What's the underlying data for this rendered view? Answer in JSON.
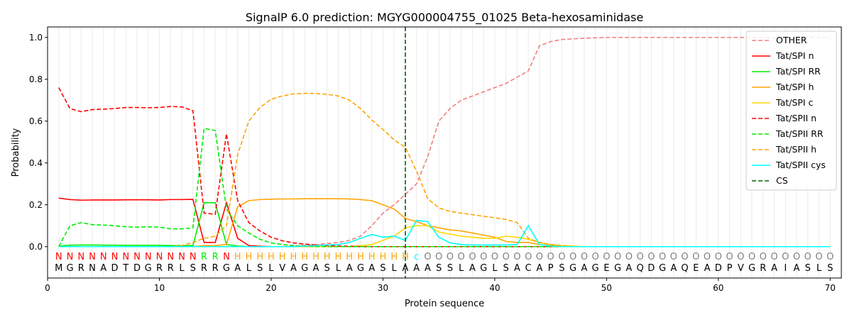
{
  "chart_data": {
    "type": "line",
    "title": "SignalP 6.0 prediction: MGYG000004755_01025 Beta-hexosaminidase",
    "xlabel": "Protein sequence",
    "ylabel": "Probability",
    "xlim": [
      0,
      71
    ],
    "ylim": [
      -0.15,
      1.05
    ],
    "xticks": [
      0,
      10,
      20,
      30,
      40,
      50,
      60,
      70
    ],
    "yticks": [
      0.0,
      0.2,
      0.4,
      0.6,
      0.8,
      1.0
    ],
    "xtick_labels": [
      "0",
      "10",
      "20",
      "30",
      "40",
      "50",
      "60",
      "70"
    ],
    "ytick_labels": [
      "0.0",
      "0.2",
      "0.4",
      "0.6",
      "0.8",
      "1.0"
    ],
    "legend_position": "top-right",
    "sequence": [
      "M",
      "G",
      "R",
      "N",
      "A",
      "D",
      "T",
      "D",
      "G",
      "R",
      "R",
      "L",
      "S",
      "R",
      "R",
      "G",
      "A",
      "L",
      "S",
      "L",
      "V",
      "A",
      "G",
      "A",
      "S",
      "L",
      "A",
      "G",
      "A",
      "S",
      "L",
      "A",
      "A",
      "A",
      "S",
      "S",
      "L",
      "A",
      "G",
      "L",
      "S",
      "A",
      "C",
      "A",
      "P",
      "S",
      "G",
      "A",
      "G",
      "E",
      "G",
      "A",
      "Q",
      "D",
      "G",
      "A",
      "Q",
      "E",
      "A",
      "D",
      "P",
      "V",
      "G",
      "R",
      "A",
      "I",
      "A",
      "S",
      "L",
      "S"
    ],
    "region_labels": [
      "N",
      "N",
      "N",
      "N",
      "N",
      "N",
      "N",
      "N",
      "N",
      "N",
      "N",
      "N",
      "N",
      "R",
      "R",
      "N",
      "H",
      "H",
      "H",
      "H",
      "H",
      "H",
      "H",
      "H",
      "H",
      "H",
      "H",
      "H",
      "H",
      "H",
      "H",
      "H",
      "c",
      "O",
      "O",
      "O",
      "O",
      "O",
      "O",
      "O",
      "O",
      "O",
      "O",
      "O",
      "O",
      "O",
      "O",
      "O",
      "O",
      "O",
      "O",
      "O",
      "O",
      "O",
      "O",
      "O",
      "O",
      "O",
      "O",
      "O",
      "O",
      "O",
      "O",
      "O",
      "O",
      "O",
      "O",
      "O",
      "O",
      "O"
    ],
    "region_colors": {
      "N": "#ff0000",
      "R": "#00ee00",
      "H": "#ffa500",
      "c": "#00ffff",
      "O": "#808080"
    },
    "cs_position": 32,
    "cs_label": "CS",
    "cs_color": "#006400",
    "series": [
      {
        "name": "OTHER",
        "color": "#f08080",
        "dash": true,
        "values": [
          0,
          0,
          0,
          0,
          0,
          0,
          0,
          0,
          0,
          0,
          0,
          0,
          0,
          0,
          0,
          0,
          0,
          0,
          0,
          0,
          0,
          0.003,
          0.006,
          0.01,
          0.015,
          0.02,
          0.03,
          0.05,
          0.1,
          0.16,
          0.2,
          0.25,
          0.3,
          0.43,
          0.6,
          0.66,
          0.7,
          0.72,
          0.74,
          0.76,
          0.78,
          0.81,
          0.84,
          0.96,
          0.98,
          0.99,
          0.993,
          0.996,
          0.998,
          1,
          1,
          1,
          1,
          1,
          1,
          1,
          1,
          1,
          1,
          1,
          1,
          1,
          1,
          1,
          1,
          1,
          1,
          1,
          1,
          1
        ]
      },
      {
        "name": "Tat/SPI n",
        "color": "#ff0000",
        "dash": false,
        "values": [
          0.232,
          0.225,
          0.222,
          0.223,
          0.223,
          0.223,
          0.224,
          0.224,
          0.224,
          0.223,
          0.225,
          0.225,
          0.226,
          0.02,
          0.02,
          0.21,
          0.04,
          0.005,
          0.002,
          0,
          0,
          0,
          0,
          0,
          0,
          0,
          0,
          0,
          0,
          0,
          0,
          0,
          0,
          0,
          0,
          0,
          0,
          0,
          0,
          0,
          0,
          0,
          0,
          0,
          0,
          0,
          0,
          0,
          0,
          0,
          0,
          0,
          0,
          0,
          0,
          0,
          0,
          0,
          0,
          0,
          0,
          0,
          0,
          0,
          0,
          0,
          0,
          0,
          0,
          0
        ]
      },
      {
        "name": "Tat/SPI RR",
        "color": "#00ee00",
        "dash": false,
        "values": [
          0.003,
          0.007,
          0.008,
          0.008,
          0.007,
          0.007,
          0.006,
          0.006,
          0.006,
          0.006,
          0.005,
          0.005,
          0.005,
          0.21,
          0.21,
          0.01,
          0.003,
          0,
          0,
          0,
          0,
          0,
          0,
          0,
          0,
          0,
          0,
          0,
          0,
          0,
          0,
          0,
          0,
          0,
          0,
          0,
          0,
          0,
          0,
          0,
          0,
          0,
          0,
          0,
          0,
          0,
          0,
          0,
          0,
          0,
          0,
          0,
          0,
          0,
          0,
          0,
          0,
          0,
          0,
          0,
          0,
          0,
          0,
          0,
          0,
          0,
          0,
          0,
          0,
          0
        ]
      },
      {
        "name": "Tat/SPI h",
        "color": "#ffa500",
        "dash": false,
        "values": [
          0,
          0,
          0,
          0,
          0,
          0,
          0,
          0,
          0,
          0,
          0,
          0,
          0,
          0.005,
          0.005,
          0.01,
          0.19,
          0.22,
          0.225,
          0.227,
          0.228,
          0.228,
          0.229,
          0.229,
          0.229,
          0.229,
          0.228,
          0.225,
          0.22,
          0.2,
          0.18,
          0.135,
          0.12,
          0.1,
          0.09,
          0.08,
          0.075,
          0.065,
          0.055,
          0.045,
          0.025,
          0.02,
          0.02,
          0.01,
          0.005,
          0,
          0,
          0,
          0,
          0,
          0,
          0,
          0,
          0,
          0,
          0,
          0,
          0,
          0,
          0,
          0,
          0,
          0,
          0,
          0,
          0,
          0,
          0,
          0,
          0
        ]
      },
      {
        "name": "Tat/SPI c",
        "color": "#ffd700",
        "dash": false,
        "values": [
          0,
          0,
          0,
          0,
          0,
          0,
          0,
          0,
          0,
          0,
          0,
          0,
          0,
          0,
          0,
          0,
          0,
          0,
          0,
          0,
          0,
          0,
          0,
          0,
          0,
          0,
          0,
          0.005,
          0.01,
          0.03,
          0.05,
          0.09,
          0.1,
          0.1,
          0.07,
          0.06,
          0.05,
          0.045,
          0.04,
          0.04,
          0.05,
          0.045,
          0.035,
          0.02,
          0.01,
          0.005,
          0.003,
          0,
          0,
          0,
          0,
          0,
          0,
          0,
          0,
          0,
          0,
          0,
          0,
          0,
          0,
          0,
          0,
          0,
          0,
          0,
          0,
          0,
          0,
          0
        ]
      },
      {
        "name": "Tat/SPII n",
        "color": "#ff0000",
        "dash": true,
        "values": [
          0.76,
          0.66,
          0.645,
          0.655,
          0.657,
          0.66,
          0.665,
          0.665,
          0.664,
          0.665,
          0.67,
          0.668,
          0.65,
          0.16,
          0.155,
          0.54,
          0.22,
          0.115,
          0.075,
          0.045,
          0.028,
          0.018,
          0.012,
          0.008,
          0.005,
          0.003,
          0.002,
          0,
          0,
          0,
          0,
          0,
          0,
          0,
          0,
          0,
          0,
          0,
          0,
          0,
          0,
          0,
          0,
          0,
          0,
          0,
          0,
          0,
          0,
          0,
          0,
          0,
          0,
          0,
          0,
          0,
          0,
          0,
          0,
          0,
          0,
          0,
          0,
          0,
          0,
          0,
          0,
          0,
          0,
          0
        ]
      },
      {
        "name": "Tat/SPII RR",
        "color": "#00ee00",
        "dash": true,
        "values": [
          0,
          0.1,
          0.115,
          0.105,
          0.103,
          0.1,
          0.095,
          0.093,
          0.095,
          0.093,
          0.085,
          0.085,
          0.09,
          0.565,
          0.555,
          0.18,
          0.1,
          0.065,
          0.035,
          0.018,
          0.01,
          0.005,
          0.002,
          0,
          0,
          0,
          0,
          0,
          0,
          0,
          0,
          0,
          0,
          0,
          0,
          0,
          0,
          0,
          0,
          0,
          0,
          0,
          0,
          0,
          0,
          0,
          0,
          0,
          0,
          0,
          0,
          0,
          0,
          0,
          0,
          0,
          0,
          0,
          0,
          0,
          0,
          0,
          0,
          0,
          0,
          0,
          0,
          0,
          0,
          0
        ]
      },
      {
        "name": "Tat/SPII h",
        "color": "#ffa500",
        "dash": true,
        "values": [
          0,
          0,
          0,
          0,
          0,
          0,
          0,
          0,
          0,
          0,
          0,
          0.005,
          0.02,
          0.04,
          0.05,
          0.1,
          0.44,
          0.6,
          0.665,
          0.705,
          0.72,
          0.73,
          0.733,
          0.732,
          0.728,
          0.72,
          0.7,
          0.66,
          0.605,
          0.56,
          0.51,
          0.475,
          0.36,
          0.23,
          0.185,
          0.168,
          0.16,
          0.153,
          0.145,
          0.138,
          0.13,
          0.115,
          0.04,
          0.02,
          0.01,
          0.005,
          0,
          0,
          0,
          0,
          0,
          0,
          0,
          0,
          0,
          0,
          0,
          0,
          0,
          0,
          0,
          0,
          0,
          0,
          0,
          0,
          0,
          0,
          0,
          0
        ]
      },
      {
        "name": "Tat/SPII cys",
        "color": "#00ffff",
        "dash": false,
        "values": [
          0,
          0,
          0,
          0,
          0,
          0,
          0,
          0,
          0,
          0,
          0,
          0,
          0,
          0,
          0,
          0,
          0,
          0,
          0,
          0,
          0,
          0,
          0.003,
          0.005,
          0.008,
          0.01,
          0.02,
          0.04,
          0.058,
          0.045,
          0.05,
          0.03,
          0.125,
          0.12,
          0.045,
          0.018,
          0.01,
          0.008,
          0.008,
          0.008,
          0.008,
          0.01,
          0.1,
          0.01,
          0.003,
          0,
          0,
          0,
          0,
          0,
          0,
          0,
          0,
          0,
          0,
          0,
          0,
          0,
          0,
          0,
          0,
          0,
          0,
          0,
          0,
          0,
          0,
          0,
          0,
          0
        ]
      }
    ]
  }
}
